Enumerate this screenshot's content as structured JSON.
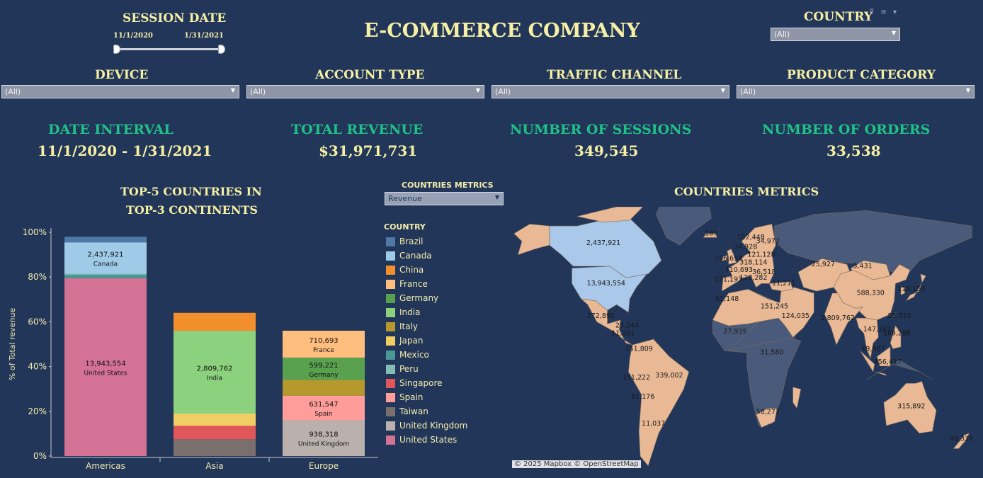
{
  "header": {
    "session_date_title": "SESSION DATE",
    "date_start": "11/1/2020",
    "date_end": "1/31/2021",
    "main_title": "E-COMMERCE COMPANY",
    "country_title": "COUNTRY",
    "country_value": "(All)",
    "filter_icons": "⊽ ≡ ▾"
  },
  "filters": {
    "device": {
      "title": "DEVICE",
      "value": "(All)"
    },
    "account_type": {
      "title": "ACCOUNT TYPE",
      "value": "(All)"
    },
    "traffic_channel": {
      "title": "TRAFFIC CHANNEL",
      "value": "(All)"
    },
    "product_category": {
      "title": "PRODUCT CATEGORY",
      "value": "(All)"
    }
  },
  "kpis": {
    "date_interval": {
      "title": "DATE INTERVAL",
      "value": "11/1/2020 - 1/31/2021"
    },
    "total_revenue": {
      "title": "TOTAL REVENUE",
      "value": "$31,971,731"
    },
    "sessions": {
      "title": "NUMBER OF SESSIONS",
      "value": "349,545"
    },
    "orders": {
      "title": "NUMBER OF ORDERS",
      "value": "33,538"
    }
  },
  "bar_panel": {
    "title_line1": "TOP-5 COUNTRIES  IN",
    "title_line2": "TOP-3 CONTINENTS",
    "metric_title": "COUNTRIES METRICS",
    "metric_value": "Revenue",
    "legend_title": "COUNTRY"
  },
  "map_panel": {
    "title": "COUNTRIES METRICS",
    "attribution": "© 2025 Mapbox  © OpenStreetMap",
    "land_color": "#e9b995",
    "selected_color": "#a9c8ea",
    "ocean_color": "#22365a",
    "nodata_color": "#4a5a7a",
    "labels": [
      {
        "text": "2,437,921",
        "lon": -100,
        "lat": 60
      },
      {
        "text": "13,943,554",
        "lon": -98,
        "lat": 39
      },
      {
        "text": "272,895",
        "lon": -102,
        "lat": 22
      },
      {
        "text": "23,244",
        "lon": -82,
        "lat": 17
      },
      {
        "text": "11,291",
        "lon": -85,
        "lat": 13
      },
      {
        "text": "151,809",
        "lon": -73,
        "lat": 5
      },
      {
        "text": "151,222",
        "lon": -75,
        "lat": -10
      },
      {
        "text": "339,002",
        "lon": -50,
        "lat": -9
      },
      {
        "text": "61,176",
        "lon": -70,
        "lat": -20
      },
      {
        "text": "11,037",
        "lon": -62,
        "lat": -34
      },
      {
        "text": "189",
        "lon": -18,
        "lat": 65
      },
      {
        "text": "152,448",
        "lon": 12,
        "lat": 63
      },
      {
        "text": "34,972",
        "lon": 25,
        "lat": 61
      },
      {
        "text": "34,928",
        "lon": 8,
        "lat": 58
      },
      {
        "text": "121,128",
        "lon": 20,
        "lat": 54
      },
      {
        "text": "196,654",
        "lon": -5,
        "lat": 52
      },
      {
        "text": "318,114",
        "lon": 14,
        "lat": 50
      },
      {
        "text": "710,693",
        "lon": 3,
        "lat": 46
      },
      {
        "text": "36,518",
        "lon": 22,
        "lat": 45
      },
      {
        "text": "121,193",
        "lon": -5,
        "lat": 41
      },
      {
        "text": "128,282",
        "lon": 14,
        "lat": 42
      },
      {
        "text": "11,211",
        "lon": 37,
        "lat": 39
      },
      {
        "text": "61,148",
        "lon": -6,
        "lat": 31
      },
      {
        "text": "151,245",
        "lon": 30,
        "lat": 27
      },
      {
        "text": "124,035",
        "lon": 46,
        "lat": 22
      },
      {
        "text": "27,935",
        "lon": 0,
        "lat": 14
      },
      {
        "text": "31,580",
        "lon": 28,
        "lat": 3
      },
      {
        "text": "58,277",
        "lon": 25,
        "lat": -28
      },
      {
        "text": "25,927",
        "lon": 67,
        "lat": 49
      },
      {
        "text": "3,431",
        "lon": 97,
        "lat": 48
      },
      {
        "text": "588,330",
        "lon": 103,
        "lat": 34
      },
      {
        "text": "2,809,762",
        "lon": 78,
        "lat": 21
      },
      {
        "text": "118,153",
        "lon": 134,
        "lat": 36
      },
      {
        "text": "55,710",
        "lon": 125,
        "lat": 22
      },
      {
        "text": "147,167",
        "lon": 108,
        "lat": 15
      },
      {
        "text": "169,288",
        "lon": 123,
        "lat": 13
      },
      {
        "text": "69,987",
        "lon": 105,
        "lat": 5
      },
      {
        "text": "456,417",
        "lon": 116,
        "lat": -2
      },
      {
        "text": "315,892",
        "lon": 134,
        "lat": -25
      },
      {
        "text": "49,338",
        "lon": 172,
        "lat": -42
      }
    ]
  },
  "colors": {
    "Brazil": "#4e79a7",
    "Canada": "#a0cbe8",
    "China": "#f28e2b",
    "France": "#ffbe7d",
    "Germany": "#59a14f",
    "India": "#8cd17d",
    "Italy": "#b6992d",
    "Japan": "#f1ce63",
    "Mexico": "#499894",
    "Peru": "#86bcb6",
    "Singapore": "#e15759",
    "Spain": "#ff9d9a",
    "Taiwan": "#79706e",
    "United Kingdom": "#bab0ac",
    "United States": "#d37295"
  },
  "chart_data": {
    "type": "bar",
    "stacked": true,
    "ylabel": "% of Total revenue",
    "ylim": [
      0,
      1.0
    ],
    "yticks": [
      "0%",
      "20%",
      "40%",
      "60%",
      "80%",
      "100%"
    ],
    "categories": [
      "Americas",
      "Asia",
      "Europe"
    ],
    "legend": [
      "Brazil",
      "Canada",
      "China",
      "France",
      "Germany",
      "India",
      "Italy",
      "Japan",
      "Mexico",
      "Peru",
      "Singapore",
      "Spain",
      "Taiwan",
      "United Kingdom",
      "United States"
    ],
    "stacks": [
      {
        "category": "Americas",
        "segments": [
          {
            "country": "United States",
            "share": 0.795,
            "label": "13,943,554"
          },
          {
            "country": "Mexico",
            "share": 0.015,
            "label": ""
          },
          {
            "country": "Peru",
            "share": 0.005,
            "label": ""
          },
          {
            "country": "Canada",
            "share": 0.14,
            "label": "2,437,921"
          },
          {
            "country": "Brazil",
            "share": 0.025,
            "label": ""
          }
        ]
      },
      {
        "category": "Asia",
        "segments": [
          {
            "country": "Taiwan",
            "share": 0.075,
            "label": ""
          },
          {
            "country": "Singapore",
            "share": 0.06,
            "label": ""
          },
          {
            "country": "Japan",
            "share": 0.055,
            "label": ""
          },
          {
            "country": "India",
            "share": 0.37,
            "label": "2,809,762"
          },
          {
            "country": "China",
            "share": 0.08,
            "label": ""
          }
        ]
      },
      {
        "category": "Europe",
        "segments": [
          {
            "country": "United Kingdom",
            "share": 0.16,
            "label": "938,318"
          },
          {
            "country": "Spain",
            "share": 0.11,
            "label": "631,547"
          },
          {
            "country": "Italy",
            "share": 0.07,
            "label": ""
          },
          {
            "country": "Germany",
            "share": 0.1,
            "label": "599,221"
          },
          {
            "country": "France",
            "share": 0.12,
            "label": "710,693"
          }
        ]
      }
    ]
  }
}
